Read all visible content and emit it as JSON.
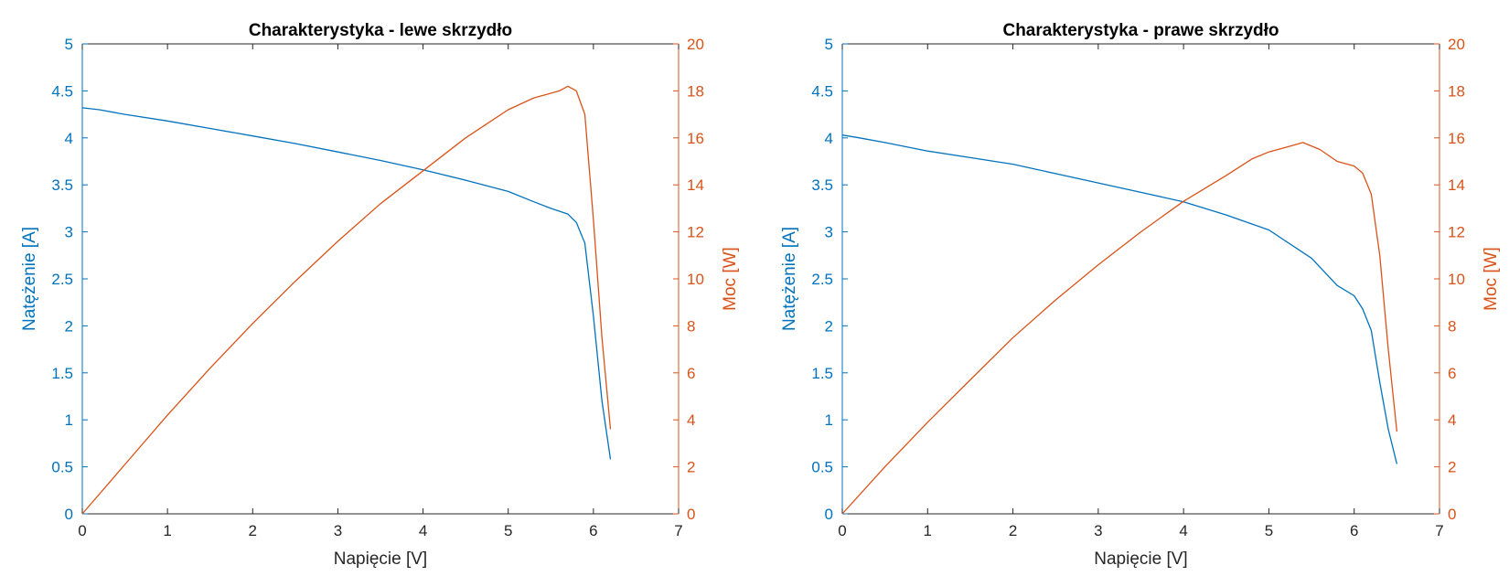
{
  "colors": {
    "left_axis": "#0072BD",
    "right_axis": "#D95319",
    "x_axis": "#262626",
    "current_series": "#0072BD",
    "power_series": "#D95319"
  },
  "chart_data": [
    {
      "type": "line",
      "title": "Charakterystyka - lewe skrzydło",
      "xlabel": "Napięcie [V]",
      "ylabel": "Natężenie [A]",
      "y2label": "Moc [W]",
      "xlim": [
        0,
        7
      ],
      "ylim": [
        0,
        5
      ],
      "y2lim": [
        0,
        20
      ],
      "xticks": [
        "0",
        "1",
        "2",
        "3",
        "4",
        "5",
        "6",
        "7"
      ],
      "yticks": [
        "0",
        "0.5",
        "1",
        "1.5",
        "2",
        "2.5",
        "3",
        "3.5",
        "4",
        "4.5",
        "5"
      ],
      "y2ticks": [
        "0",
        "2",
        "4",
        "6",
        "8",
        "10",
        "12",
        "14",
        "16",
        "18",
        "20"
      ],
      "grid": false,
      "series": [
        {
          "axis": "left",
          "x": [
            0,
            0.2,
            0.5,
            1.0,
            1.5,
            2.0,
            2.5,
            3.0,
            3.5,
            4.0,
            4.5,
            5.0,
            5.3,
            5.5,
            5.6,
            5.7,
            5.8,
            5.9,
            6.0,
            6.1,
            6.2
          ],
          "values": [
            4.32,
            4.3,
            4.25,
            4.18,
            4.1,
            4.02,
            3.94,
            3.85,
            3.76,
            3.66,
            3.55,
            3.43,
            3.32,
            3.25,
            3.22,
            3.19,
            3.1,
            2.88,
            2.1,
            1.2,
            0.58
          ]
        },
        {
          "axis": "right",
          "x": [
            0,
            0.5,
            1.0,
            1.5,
            2.0,
            2.5,
            3.0,
            3.5,
            4.0,
            4.5,
            5.0,
            5.3,
            5.5,
            5.6,
            5.7,
            5.8,
            5.9,
            6.0,
            6.1,
            6.2
          ],
          "values": [
            0,
            2.1,
            4.2,
            6.2,
            8.1,
            9.9,
            11.6,
            13.2,
            14.6,
            16.0,
            17.2,
            17.7,
            17.9,
            18.0,
            18.2,
            18.0,
            17.0,
            12.5,
            7.5,
            3.6
          ]
        }
      ]
    },
    {
      "type": "line",
      "title": "Charakterystyka - prawe skrzydło",
      "xlabel": "Napięcie [V]",
      "ylabel": "Natężenie [A]",
      "y2label": "Moc [W]",
      "xlim": [
        0,
        7
      ],
      "ylim": [
        0,
        5
      ],
      "y2lim": [
        0,
        20
      ],
      "xticks": [
        "0",
        "1",
        "2",
        "3",
        "4",
        "5",
        "6",
        "7"
      ],
      "yticks": [
        "0",
        "0.5",
        "1",
        "1.5",
        "2",
        "2.5",
        "3",
        "3.5",
        "4",
        "4.5",
        "5"
      ],
      "y2ticks": [
        "0",
        "2",
        "4",
        "6",
        "8",
        "10",
        "12",
        "14",
        "16",
        "18",
        "20"
      ],
      "grid": false,
      "series": [
        {
          "axis": "left",
          "x": [
            0,
            0.2,
            0.5,
            1.0,
            1.5,
            2.0,
            2.5,
            3.0,
            3.5,
            4.0,
            4.5,
            5.0,
            5.5,
            5.8,
            6.0,
            6.1,
            6.2,
            6.3,
            6.4,
            6.5
          ],
          "values": [
            4.03,
            4.0,
            3.95,
            3.86,
            3.79,
            3.72,
            3.62,
            3.52,
            3.42,
            3.32,
            3.18,
            3.02,
            2.72,
            2.43,
            2.32,
            2.18,
            1.95,
            1.4,
            0.9,
            0.53
          ]
        },
        {
          "axis": "right",
          "x": [
            0,
            0.5,
            1.0,
            1.5,
            2.0,
            2.5,
            3.0,
            3.5,
            4.0,
            4.5,
            4.8,
            5.0,
            5.2,
            5.4,
            5.6,
            5.8,
            6.0,
            6.1,
            6.2,
            6.3,
            6.4,
            6.5
          ],
          "values": [
            0,
            2.0,
            3.9,
            5.7,
            7.5,
            9.1,
            10.6,
            12.0,
            13.3,
            14.4,
            15.1,
            15.4,
            15.6,
            15.8,
            15.5,
            15.0,
            14.8,
            14.5,
            13.6,
            11.0,
            7.0,
            3.5
          ]
        }
      ]
    }
  ]
}
